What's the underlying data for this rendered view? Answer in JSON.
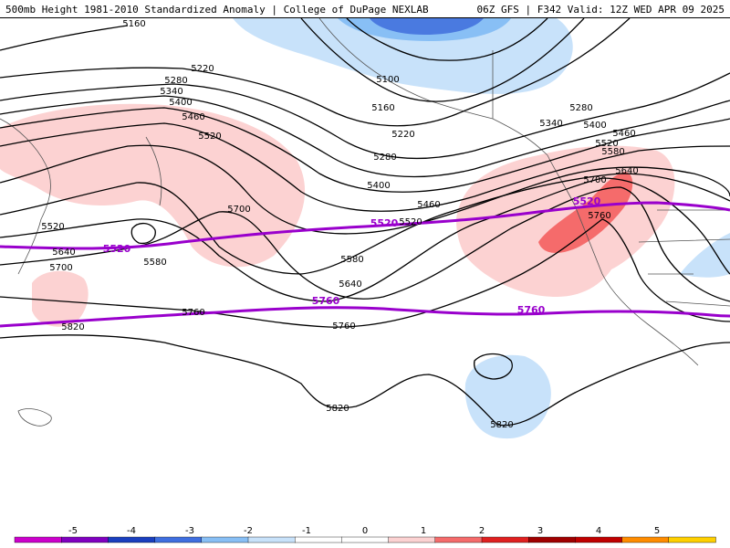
{
  "header": {
    "title_left": "500mb Height 1981-2010 Standardized Anomaly | College of DuPage NEXLAB",
    "title_right": "06Z GFS | F342 Valid: 12Z WED APR 09 2025"
  },
  "colors": {
    "purple_contour": "#9900cc",
    "height_contour": "#000000",
    "anom_pos1": "#fcd2d2",
    "anom_pos2": "#f56b6b",
    "anom_neg1": "#c8e2fa",
    "anom_neg2": "#88bff5",
    "anom_neg3": "#4a7ae0"
  },
  "contour_labels": [
    {
      "id": "5160-a",
      "text": "5160"
    },
    {
      "id": "5220-a",
      "text": "5220"
    },
    {
      "id": "5280-a",
      "text": "5280"
    },
    {
      "id": "5340-a",
      "text": "5340"
    },
    {
      "id": "5400-a",
      "text": "5400"
    },
    {
      "id": "5460-a",
      "text": "5460"
    },
    {
      "id": "5520-a",
      "text": "5520"
    },
    {
      "id": "5100-a",
      "text": "5100"
    },
    {
      "id": "5160-b",
      "text": "5160"
    },
    {
      "id": "5220-b",
      "text": "5220"
    },
    {
      "id": "5280-b",
      "text": "5280"
    },
    {
      "id": "5400-b",
      "text": "5400"
    },
    {
      "id": "5460-b",
      "text": "5460"
    },
    {
      "id": "5520-b",
      "text": "5520"
    },
    {
      "id": "5520-c",
      "text": "5520"
    },
    {
      "id": "5580-a",
      "text": "5580"
    },
    {
      "id": "5640-a",
      "text": "5640"
    },
    {
      "id": "5700-a",
      "text": "5700"
    },
    {
      "id": "5760-a",
      "text": "5760"
    },
    {
      "id": "5820-a",
      "text": "5820"
    },
    {
      "id": "5580-b",
      "text": "5580"
    },
    {
      "id": "5640-b",
      "text": "5640"
    },
    {
      "id": "5700-b",
      "text": "5700"
    },
    {
      "id": "5760-b",
      "text": "5760"
    },
    {
      "id": "5280-c",
      "text": "5280"
    },
    {
      "id": "5340-b",
      "text": "5340"
    },
    {
      "id": "5400-c",
      "text": "5400"
    },
    {
      "id": "5460-c",
      "text": "5460"
    },
    {
      "id": "5520-d",
      "text": "5520"
    },
    {
      "id": "5580-c",
      "text": "5580"
    },
    {
      "id": "5640-c",
      "text": "5640"
    },
    {
      "id": "5700-c",
      "text": "5700"
    },
    {
      "id": "5760-c",
      "text": "5760"
    },
    {
      "id": "5820-b",
      "text": "5820"
    },
    {
      "id": "5820-c",
      "text": "5820"
    }
  ],
  "purple_labels": [
    {
      "id": "p5520-a",
      "text": "5520"
    },
    {
      "id": "p5520-b",
      "text": "5520"
    },
    {
      "id": "p5520-c",
      "text": "5520"
    },
    {
      "id": "p5760-a",
      "text": "5760"
    },
    {
      "id": "p5760-b",
      "text": "5760"
    }
  ],
  "colorbar": {
    "ticks": [
      "-5",
      "-4",
      "-3",
      "-2",
      "-1",
      "0",
      "1",
      "2",
      "3",
      "4",
      "5"
    ],
    "colors": [
      "#cc00cc",
      "#8000c0",
      "#1a3fbf",
      "#3f6fe0",
      "#88bff5",
      "#c8e2fa",
      "#ffffff",
      "#ffffff",
      "#fcd2d2",
      "#f56b6b",
      "#e02020",
      "#a00000",
      "#c00000",
      "#ff8c00",
      "#ffd000"
    ]
  }
}
